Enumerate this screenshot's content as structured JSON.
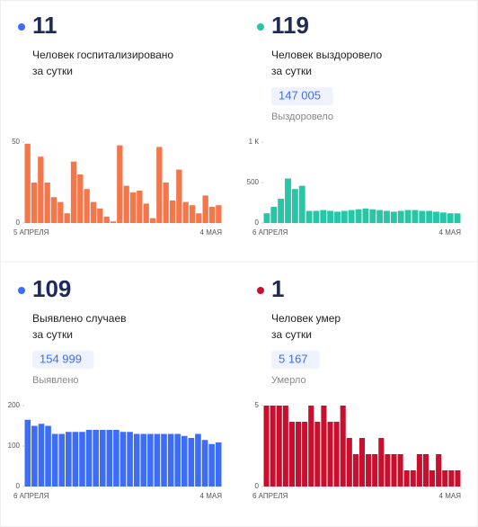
{
  "chart_data": [
    {
      "type": "bar",
      "dot_color": "#3d6cf5",
      "headline": "11",
      "label": [
        "Человек госпитализировано",
        "за сутки"
      ],
      "color": "#f4774b",
      "x_start": "5 АПРЕЛЯ",
      "x_end": "4 МАЯ",
      "ylim": [
        0,
        50
      ],
      "yticks": [
        0,
        50
      ],
      "values": [
        49,
        25,
        41,
        25,
        16,
        13,
        6,
        38,
        30,
        21,
        13,
        9,
        4,
        1,
        48,
        23,
        19,
        20,
        12,
        3,
        47,
        25,
        14,
        33,
        13,
        11,
        6,
        17,
        10,
        11
      ]
    },
    {
      "type": "bar",
      "dot_color": "#26c6a6",
      "headline": "119",
      "label": [
        "Человек выздоровело",
        "за сутки"
      ],
      "total": "147 005",
      "total_label": "Выздоровело",
      "color": "#26c6a6",
      "x_start": "6 АПРЕЛЯ",
      "x_end": "4 МАЯ",
      "ylim": [
        0,
        1000
      ],
      "yticks": [
        0,
        500,
        {
          "value": 1000,
          "label": "1 К"
        }
      ],
      "values": [
        120,
        200,
        300,
        550,
        420,
        460,
        150,
        150,
        160,
        150,
        140,
        150,
        160,
        170,
        180,
        170,
        160,
        150,
        140,
        150,
        160,
        160,
        150,
        150,
        140,
        130,
        120,
        119
      ]
    },
    {
      "type": "bar",
      "dot_color": "#3d6cf5",
      "headline": "109",
      "label": [
        "Выявлено случаев",
        "за сутки"
      ],
      "total": "154 999",
      "total_label": "Выявлено",
      "color": "#3d6cf5",
      "x_start": "6 АПРЕЛЯ",
      "x_end": "4 МАЯ",
      "ylim": [
        0,
        200
      ],
      "yticks": [
        0,
        100,
        200
      ],
      "values": [
        165,
        150,
        155,
        150,
        130,
        130,
        135,
        135,
        135,
        140,
        140,
        140,
        140,
        140,
        135,
        135,
        130,
        130,
        130,
        130,
        130,
        130,
        130,
        125,
        120,
        130,
        115,
        105,
        109
      ]
    },
    {
      "type": "bar",
      "dot_color": "#c8102e",
      "headline": "1",
      "label": [
        "Человек умер",
        "за сутки"
      ],
      "total": "5 167",
      "total_label": "Умерло",
      "color": "#c8102e",
      "x_start": "6 АПРЕЛЯ",
      "x_end": "4 МАЯ",
      "ylim": [
        0,
        5
      ],
      "yticks": [
        0,
        5
      ],
      "values": [
        5,
        5,
        5,
        5,
        4,
        4,
        4,
        5,
        4,
        5,
        4,
        4,
        5,
        3,
        2,
        3,
        2,
        2,
        3,
        2,
        2,
        2,
        1,
        1,
        2,
        2,
        1,
        2,
        1,
        1,
        1
      ]
    }
  ]
}
